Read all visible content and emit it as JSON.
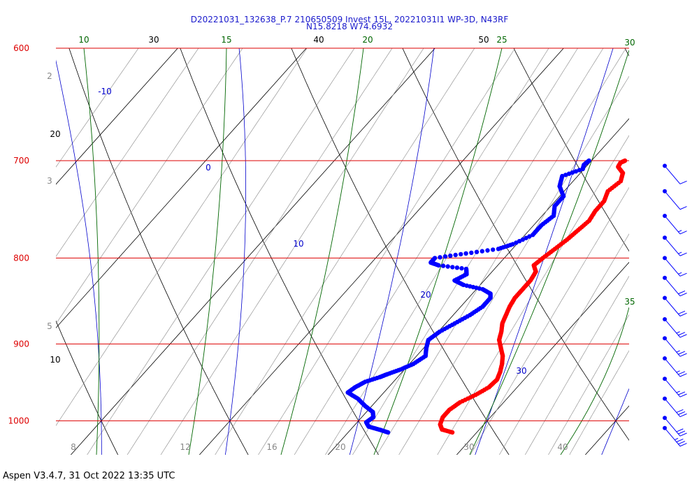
{
  "chart_data": {
    "type": "scatter",
    "title": "D20221031_132638_P.7 210650509 Invest 15L, 20221031I1 WP-3D, N43RF",
    "subtitle": "N15.8218 W74.6932",
    "footer": "Aspen V3.4.7, 31 Oct 2022  13:35 UTC",
    "pressure_labels": [
      "600",
      "700",
      "800",
      "900",
      "1000"
    ],
    "temperature_labels": [
      "10",
      "20",
      "30",
      "40",
      "50"
    ],
    "dry_adiabat_labels": [
      "10",
      "15",
      "20",
      "25",
      "30",
      "35"
    ],
    "saturation_adiabat_labels": [
      "-10",
      "0",
      "10",
      "20",
      "30"
    ],
    "mixing_ratio_labels": [
      "2",
      "3",
      "5",
      "8",
      "12",
      "16",
      "20",
      "30",
      "40"
    ],
    "colors": {
      "isobar": "#dd0000",
      "dry_adiabat": "#006600",
      "saturation_adiabat": "#0000cc",
      "isotherm": "#000000",
      "mixing_ratio": "#888888",
      "temperature": "#ff0000",
      "dewpoint": "#0000ff",
      "wind_barb": "#0000ff",
      "title": "#1a1acc"
    },
    "series": [
      {
        "name": "Temperature",
        "points": [
          [
            1016,
            28.1
          ],
          [
            1012,
            27.1
          ],
          [
            1005,
            26.6
          ],
          [
            995,
            26.3
          ],
          [
            985,
            26.3
          ],
          [
            975,
            26.6
          ],
          [
            965,
            27.3
          ],
          [
            955,
            27.8
          ],
          [
            945,
            27.9
          ],
          [
            935,
            27.6
          ],
          [
            925,
            27.2
          ],
          [
            915,
            26.7
          ],
          [
            905,
            26.0
          ],
          [
            895,
            25.3
          ],
          [
            885,
            24.9
          ],
          [
            875,
            24.4
          ],
          [
            865,
            24.1
          ],
          [
            855,
            23.8
          ],
          [
            845,
            23.6
          ],
          [
            835,
            23.6
          ],
          [
            825,
            23.6
          ],
          [
            815,
            23.4
          ],
          [
            808,
            22.8
          ],
          [
            800,
            23.0
          ],
          [
            790,
            23.3
          ],
          [
            780,
            23.6
          ],
          [
            770,
            23.8
          ],
          [
            760,
            24.0
          ],
          [
            750,
            23.8
          ],
          [
            740,
            23.8
          ],
          [
            730,
            23.4
          ],
          [
            720,
            23.7
          ],
          [
            712,
            23.3
          ],
          [
            706,
            22.5
          ],
          [
            702,
            22.4
          ],
          [
            700,
            22.6
          ]
        ]
      },
      {
        "name": "Dewpoint",
        "points": [
          [
            1016,
            23.1
          ],
          [
            1012,
            22.2
          ],
          [
            1008,
            21.2
          ],
          [
            1002,
            20.7
          ],
          [
            995,
            20.9
          ],
          [
            988,
            20.5
          ],
          [
            980,
            19.5
          ],
          [
            970,
            18.4
          ],
          [
            962,
            17.2
          ],
          [
            955,
            17.4
          ],
          [
            948,
            17.8
          ],
          [
            942,
            18.6
          ],
          [
            938,
            19.0
          ],
          [
            932,
            19.7
          ],
          [
            925,
            20.3
          ],
          [
            915,
            20.7
          ],
          [
            905,
            20.2
          ],
          [
            895,
            19.8
          ],
          [
            885,
            20.1
          ],
          [
            875,
            20.7
          ],
          [
            865,
            21.3
          ],
          [
            855,
            21.7
          ],
          [
            845,
            21.7
          ],
          [
            840,
            21.4
          ],
          [
            835,
            20.5
          ],
          [
            830,
            18.7
          ],
          [
            825,
            17.7
          ],
          [
            818,
            18.2
          ],
          [
            812,
            17.8
          ],
          [
            808,
            15.4
          ],
          [
            805,
            14.6
          ],
          [
            800,
            14.6
          ],
          [
            795,
            16.7
          ],
          [
            790,
            18.9
          ],
          [
            785,
            19.7
          ],
          [
            775,
            20.6
          ],
          [
            765,
            20.6
          ],
          [
            755,
            20.9
          ],
          [
            745,
            20.3
          ],
          [
            735,
            20.3
          ],
          [
            725,
            19.3
          ],
          [
            715,
            18.8
          ],
          [
            708,
            19.9
          ],
          [
            704,
            19.7
          ],
          [
            700,
            19.8
          ]
        ]
      }
    ],
    "wind_barbs": [
      {
        "pressure": 705,
        "speed_kt": 10
      },
      {
        "pressure": 730,
        "speed_kt": 10
      },
      {
        "pressure": 755,
        "speed_kt": 15
      },
      {
        "pressure": 778,
        "speed_kt": 15
      },
      {
        "pressure": 800,
        "speed_kt": 15
      },
      {
        "pressure": 822,
        "speed_kt": 20
      },
      {
        "pressure": 845,
        "speed_kt": 20
      },
      {
        "pressure": 870,
        "speed_kt": 25
      },
      {
        "pressure": 893,
        "speed_kt": 25
      },
      {
        "pressure": 918,
        "speed_kt": 25
      },
      {
        "pressure": 944,
        "speed_kt": 25
      },
      {
        "pressure": 970,
        "speed_kt": 30
      },
      {
        "pressure": 996,
        "speed_kt": 30
      },
      {
        "pressure": 1010,
        "speed_kt": 35
      }
    ]
  }
}
